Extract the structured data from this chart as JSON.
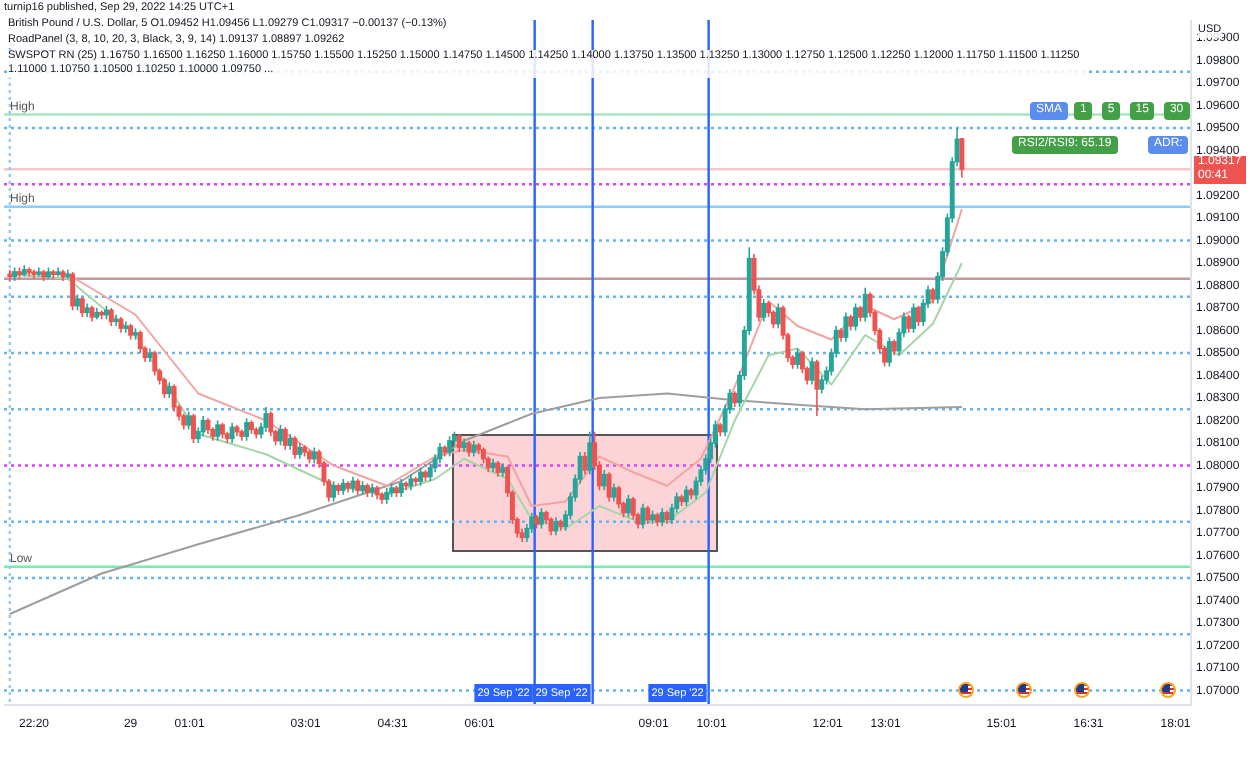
{
  "chart_data": {
    "type": "candlestick",
    "annotations": [
      "turnip16 published, Sep 29, 2022 14:25 UTC+1",
      "British Pound / U.S. Dollar, 5  O1.09452  H1.09456  L1.09279  C1.09317  −0.00137 (−0.13%)",
      "RoadPanel (3, 8, 10, 20, 3, Black, 3, 9, 14)  1.09137  1.08897  1.09262",
      "SWSPOT RN (25)  1.16750  1.16500  1.16250  1.16000  1.15750  1.15500  1.15250  1.15000  1.14750  1.14500  1.14250  1.14000  1.13750  1.13500  1.13250  1.13000  1.12750  1.12500  1.12250  1.12000  1.11750  1.11500  1.11250  1.11000  1.10750  1.10500  1.10250  1.10000  1.09750 ...",
      "USD",
      "SMA",
      "1 5 15 30",
      "RSI2/RSI9: 65.19",
      "ADR:",
      "1.09317",
      "00:41"
    ],
    "x": [
      "2022-09-28T21:55",
      "2022-09-28T22:00",
      "2022-09-28T22:05",
      "2022-09-28T22:10",
      "2022-09-28T22:15",
      "2022-09-28T22:20",
      "2022-09-28T22:25",
      "2022-09-28T22:30",
      "2022-09-28T22:35",
      "2022-09-28T22:40",
      "2022-09-28T22:45",
      "2022-09-28T22:50",
      "2022-09-28T22:55",
      "2022-09-28T23:00",
      "2022-09-28T23:05",
      "2022-09-28T23:10",
      "2022-09-28T23:15",
      "2022-09-28T23:20",
      "2022-09-28T23:25",
      "2022-09-28T23:30",
      "2022-09-28T23:35",
      "2022-09-28T23:40",
      "2022-09-28T23:45",
      "2022-09-28T23:50",
      "2022-09-28T23:55",
      "2022-09-29T00:00",
      "2022-09-29T00:05",
      "2022-09-29T00:10",
      "2022-09-29T00:15",
      "2022-09-29T00:20",
      "2022-09-29T00:25",
      "2022-09-29T00:30",
      "2022-09-29T00:35",
      "2022-09-29T00:40",
      "2022-09-29T00:45",
      "2022-09-29T00:50",
      "2022-09-29T00:55",
      "2022-09-29T01:00",
      "2022-09-29T01:05",
      "2022-09-29T01:10",
      "2022-09-29T01:15",
      "2022-09-29T01:20",
      "2022-09-29T01:25",
      "2022-09-29T01:30",
      "2022-09-29T01:35",
      "2022-09-29T01:40",
      "2022-09-29T01:45",
      "2022-09-29T01:50",
      "2022-09-29T01:55",
      "2022-09-29T02:00",
      "2022-09-29T02:05",
      "2022-09-29T02:10",
      "2022-09-29T02:15",
      "2022-09-29T02:20",
      "2022-09-29T02:25",
      "2022-09-29T02:30",
      "2022-09-29T02:35",
      "2022-09-29T02:40",
      "2022-09-29T02:45",
      "2022-09-29T02:50",
      "2022-09-29T02:55",
      "2022-09-29T03:00",
      "2022-09-29T03:05",
      "2022-09-29T03:10",
      "2022-09-29T03:15",
      "2022-09-29T03:20",
      "2022-09-29T03:25",
      "2022-09-29T03:30",
      "2022-09-29T03:35",
      "2022-09-29T03:40",
      "2022-09-29T03:45",
      "2022-09-29T03:50",
      "2022-09-29T03:55",
      "2022-09-29T04:00",
      "2022-09-29T04:05",
      "2022-09-29T04:10",
      "2022-09-29T04:15",
      "2022-09-29T04:20",
      "2022-09-29T04:25",
      "2022-09-29T04:30",
      "2022-09-29T04:35",
      "2022-09-29T04:40",
      "2022-09-29T04:45",
      "2022-09-29T04:50",
      "2022-09-29T04:55",
      "2022-09-29T05:00",
      "2022-09-29T05:05",
      "2022-09-29T05:10",
      "2022-09-29T05:15",
      "2022-09-29T05:20",
      "2022-09-29T05:25",
      "2022-09-29T05:30",
      "2022-09-29T05:35",
      "2022-09-29T05:40",
      "2022-09-29T05:45",
      "2022-09-29T05:50",
      "2022-09-29T05:55",
      "2022-09-29T06:00",
      "2022-09-29T06:05",
      "2022-09-29T06:10",
      "2022-09-29T06:15",
      "2022-09-29T06:20",
      "2022-09-29T06:25",
      "2022-09-29T06:30",
      "2022-09-29T06:35",
      "2022-09-29T06:40",
      "2022-09-29T06:45",
      "2022-09-29T06:50",
      "2022-09-29T06:55",
      "2022-09-29T07:00",
      "2022-09-29T07:05",
      "2022-09-29T07:10",
      "2022-09-29T07:15",
      "2022-09-29T07:20",
      "2022-09-29T07:25",
      "2022-09-29T07:30",
      "2022-09-29T07:35",
      "2022-09-29T07:40",
      "2022-09-29T07:45",
      "2022-09-29T07:50",
      "2022-09-29T07:55",
      "2022-09-29T08:00",
      "2022-09-29T08:05",
      "2022-09-29T08:10",
      "2022-09-29T08:15",
      "2022-09-29T08:20",
      "2022-09-29T08:25",
      "2022-09-29T08:30",
      "2022-09-29T08:35",
      "2022-09-29T08:40",
      "2022-09-29T08:45",
      "2022-09-29T08:50",
      "2022-09-29T08:55",
      "2022-09-29T09:00",
      "2022-09-29T09:05",
      "2022-09-29T09:10",
      "2022-09-29T09:15",
      "2022-09-29T09:20",
      "2022-09-29T09:25",
      "2022-09-29T09:30",
      "2022-09-29T09:35",
      "2022-09-29T09:40",
      "2022-09-29T09:45",
      "2022-09-29T09:50",
      "2022-09-29T09:55",
      "2022-09-29T10:00",
      "2022-09-29T10:05",
      "2022-09-29T10:10",
      "2022-09-29T10:15",
      "2022-09-29T10:20",
      "2022-09-29T10:25",
      "2022-09-29T10:30",
      "2022-09-29T10:35",
      "2022-09-29T10:40",
      "2022-09-29T10:45",
      "2022-09-29T10:50",
      "2022-09-29T10:55",
      "2022-09-29T11:00",
      "2022-09-29T11:05",
      "2022-09-29T11:10",
      "2022-09-29T11:15",
      "2022-09-29T11:20",
      "2022-09-29T11:25",
      "2022-09-29T11:30",
      "2022-09-29T11:35",
      "2022-09-29T11:40",
      "2022-09-29T11:45",
      "2022-09-29T11:50",
      "2022-09-29T11:55",
      "2022-09-29T12:00",
      "2022-09-29T12:05",
      "2022-09-29T12:10",
      "2022-09-29T12:15",
      "2022-09-29T12:20",
      "2022-09-29T12:25",
      "2022-09-29T12:30",
      "2022-09-29T12:35",
      "2022-09-29T12:40",
      "2022-09-29T12:45",
      "2022-09-29T12:50",
      "2022-09-29T12:55",
      "2022-09-29T13:00",
      "2022-09-29T13:05",
      "2022-09-29T13:10",
      "2022-09-29T13:15",
      "2022-09-29T13:20",
      "2022-09-29T13:25",
      "2022-09-29T13:30",
      "2022-09-29T13:35",
      "2022-09-29T13:40",
      "2022-09-29T13:45",
      "2022-09-29T13:50",
      "2022-09-29T13:55",
      "2022-09-29T14:00",
      "2022-09-29T14:05",
      "2022-09-29T14:10",
      "2022-09-29T14:15",
      "2022-09-29T14:20"
    ],
    "ohlc": [
      [
        1.0885,
        1.0887,
        1.0882,
        1.0884
      ],
      [
        1.0884,
        1.0888,
        1.0882,
        1.0886
      ],
      [
        1.0886,
        1.0888,
        1.0883,
        1.0885
      ],
      [
        1.0885,
        1.0889,
        1.0884,
        1.0887
      ],
      [
        1.0887,
        1.0888,
        1.0884,
        1.0886
      ],
      [
        1.0886,
        1.0887,
        1.0883,
        1.0885
      ],
      [
        1.0885,
        1.0888,
        1.0884,
        1.0886
      ],
      [
        1.0886,
        1.0887,
        1.0882,
        1.0884
      ],
      [
        1.0884,
        1.0888,
        1.0883,
        1.0886
      ],
      [
        1.0886,
        1.0887,
        1.0883,
        1.0885
      ],
      [
        1.0885,
        1.0888,
        1.0884,
        1.0886
      ],
      [
        1.0886,
        1.0887,
        1.0882,
        1.0884
      ],
      [
        1.0884,
        1.0887,
        1.0883,
        1.0885
      ],
      [
        1.0885,
        1.0886,
        1.0869,
        1.0871
      ],
      [
        1.0871,
        1.0876,
        1.0869,
        1.0874
      ],
      [
        1.0874,
        1.0875,
        1.0866,
        1.0868
      ],
      [
        1.0868,
        1.0872,
        1.0866,
        1.087
      ],
      [
        1.087,
        1.0871,
        1.0864,
        1.0866
      ],
      [
        1.0866,
        1.087,
        1.0865,
        1.0868
      ],
      [
        1.0868,
        1.0869,
        1.0865,
        1.0867
      ],
      [
        1.0867,
        1.0871,
        1.0865,
        1.0869
      ],
      [
        1.0869,
        1.087,
        1.0862,
        1.0864
      ],
      [
        1.0864,
        1.0867,
        1.0862,
        1.0865
      ],
      [
        1.0865,
        1.0866,
        1.0859,
        1.0861
      ],
      [
        1.0861,
        1.0864,
        1.0859,
        1.0862
      ],
      [
        1.0862,
        1.0863,
        1.0856,
        1.0858
      ],
      [
        1.0858,
        1.0861,
        1.0856,
        1.0859
      ],
      [
        1.0859,
        1.086,
        1.085,
        1.0852
      ],
      [
        1.0852,
        1.0853,
        1.0846,
        1.0848
      ],
      [
        1.0848,
        1.0852,
        1.0846,
        1.085
      ],
      [
        1.085,
        1.0851,
        1.084,
        1.0842
      ],
      [
        1.0842,
        1.0843,
        1.0836,
        1.0838
      ],
      [
        1.0838,
        1.0839,
        1.083,
        1.0832
      ],
      [
        1.0832,
        1.0837,
        1.083,
        1.0835
      ],
      [
        1.0835,
        1.0836,
        1.0824,
        1.0826
      ],
      [
        1.0826,
        1.0827,
        1.082,
        1.0822
      ],
      [
        1.0822,
        1.0823,
        1.0816,
        1.0818
      ],
      [
        1.0818,
        1.0824,
        1.0816,
        1.0822
      ],
      [
        1.0822,
        1.0823,
        1.081,
        1.0812
      ],
      [
        1.0812,
        1.0817,
        1.081,
        1.0815
      ],
      [
        1.0815,
        1.0822,
        1.0813,
        1.082
      ],
      [
        1.082,
        1.0821,
        1.0814,
        1.0816
      ],
      [
        1.0816,
        1.0817,
        1.0811,
        1.0813
      ],
      [
        1.0813,
        1.082,
        1.0811,
        1.0818
      ],
      [
        1.0818,
        1.0819,
        1.0812,
        1.0814
      ],
      [
        1.0814,
        1.0815,
        1.081,
        1.0812
      ],
      [
        1.0812,
        1.0819,
        1.081,
        1.0817
      ],
      [
        1.0817,
        1.0818,
        1.0813,
        1.0815
      ],
      [
        1.0815,
        1.0816,
        1.0811,
        1.0813
      ],
      [
        1.0813,
        1.0821,
        1.0811,
        1.0819
      ],
      [
        1.0819,
        1.082,
        1.0814,
        1.0816
      ],
      [
        1.0816,
        1.0817,
        1.0812,
        1.0814
      ],
      [
        1.0814,
        1.0819,
        1.0812,
        1.0817
      ],
      [
        1.0817,
        1.0826,
        1.0815,
        1.0823
      ],
      [
        1.0823,
        1.0824,
        1.0813,
        1.0815
      ],
      [
        1.0815,
        1.0816,
        1.0809,
        1.0811
      ],
      [
        1.0811,
        1.0818,
        1.0809,
        1.0816
      ],
      [
        1.0816,
        1.0817,
        1.0807,
        1.0809
      ],
      [
        1.0809,
        1.0814,
        1.0807,
        1.0812
      ],
      [
        1.0812,
        1.0813,
        1.0803,
        1.0805
      ],
      [
        1.0805,
        1.081,
        1.0803,
        1.0808
      ],
      [
        1.0808,
        1.0809,
        1.0804,
        1.0806
      ],
      [
        1.0806,
        1.0807,
        1.0801,
        1.0803
      ],
      [
        1.0803,
        1.0808,
        1.0801,
        1.0806
      ],
      [
        1.0806,
        1.0807,
        1.0799,
        1.0801
      ],
      [
        1.0801,
        1.0802,
        1.0791,
        1.0793
      ],
      [
        1.0793,
        1.0794,
        1.0784,
        1.0786
      ],
      [
        1.0786,
        1.0793,
        1.0784,
        1.0791
      ],
      [
        1.0791,
        1.0792,
        1.0787,
        1.0789
      ],
      [
        1.0789,
        1.0794,
        1.0787,
        1.0792
      ],
      [
        1.0792,
        1.0793,
        1.0788,
        1.079
      ],
      [
        1.079,
        1.0795,
        1.0788,
        1.0793
      ],
      [
        1.0793,
        1.0794,
        1.0787,
        1.0789
      ],
      [
        1.0789,
        1.0793,
        1.0787,
        1.0791
      ],
      [
        1.0791,
        1.0792,
        1.0786,
        1.0788
      ],
      [
        1.0788,
        1.0792,
        1.0786,
        1.079
      ],
      [
        1.079,
        1.0791,
        1.0785,
        1.0787
      ],
      [
        1.0787,
        1.0788,
        1.0783,
        1.0785
      ],
      [
        1.0785,
        1.079,
        1.0783,
        1.0788
      ],
      [
        1.0788,
        1.0792,
        1.0786,
        1.079
      ],
      [
        1.079,
        1.0791,
        1.0786,
        1.0788
      ],
      [
        1.0788,
        1.0794,
        1.0786,
        1.0792
      ],
      [
        1.0792,
        1.0793,
        1.0789,
        1.0791
      ],
      [
        1.0791,
        1.0796,
        1.0789,
        1.0794
      ],
      [
        1.0794,
        1.0795,
        1.0791,
        1.0793
      ],
      [
        1.0793,
        1.0799,
        1.0791,
        1.0797
      ],
      [
        1.0797,
        1.0798,
        1.0793,
        1.0795
      ],
      [
        1.0795,
        1.0801,
        1.0793,
        1.0799
      ],
      [
        1.0799,
        1.0805,
        1.0797,
        1.0803
      ],
      [
        1.0803,
        1.081,
        1.0801,
        1.0808
      ],
      [
        1.0808,
        1.0809,
        1.0804,
        1.0806
      ],
      [
        1.0806,
        1.0813,
        1.0804,
        1.0811
      ],
      [
        1.0811,
        1.0815,
        1.0809,
        1.0813
      ],
      [
        1.0813,
        1.0814,
        1.0806,
        1.0808
      ],
      [
        1.0808,
        1.0812,
        1.0806,
        1.081
      ],
      [
        1.081,
        1.0811,
        1.0804,
        1.0806
      ],
      [
        1.0806,
        1.0811,
        1.0804,
        1.0809
      ],
      [
        1.0809,
        1.081,
        1.0805,
        1.0807
      ],
      [
        1.0807,
        1.0808,
        1.0801,
        1.0803
      ],
      [
        1.0803,
        1.0804,
        1.0797,
        1.0799
      ],
      [
        1.0799,
        1.0803,
        1.0797,
        1.0801
      ],
      [
        1.0801,
        1.0802,
        1.0795,
        1.0797
      ],
      [
        1.0797,
        1.0801,
        1.0795,
        1.0799
      ],
      [
        1.0799,
        1.08,
        1.0786,
        1.0788
      ],
      [
        1.0788,
        1.0789,
        1.0774,
        1.0776
      ],
      [
        1.0776,
        1.0777,
        1.0768,
        1.077
      ],
      [
        1.077,
        1.0772,
        1.0766,
        1.0768
      ],
      [
        1.0768,
        1.0774,
        1.0766,
        1.0772
      ],
      [
        1.0772,
        1.0779,
        1.077,
        1.0777
      ],
      [
        1.0777,
        1.0778,
        1.0772,
        1.0774
      ],
      [
        1.0774,
        1.0781,
        1.0772,
        1.0779
      ],
      [
        1.0779,
        1.078,
        1.0774,
        1.0776
      ],
      [
        1.0776,
        1.0777,
        1.0769,
        1.0771
      ],
      [
        1.0771,
        1.0777,
        1.0769,
        1.0775
      ],
      [
        1.0775,
        1.0776,
        1.0771,
        1.0773
      ],
      [
        1.0773,
        1.078,
        1.0771,
        1.0778
      ],
      [
        1.0778,
        1.0788,
        1.0776,
        1.0786
      ],
      [
        1.0786,
        1.0796,
        1.0784,
        1.0794
      ],
      [
        1.0794,
        1.0806,
        1.0792,
        1.0804
      ],
      [
        1.0804,
        1.0806,
        1.0796,
        1.0798
      ],
      [
        1.0798,
        1.0815,
        1.0796,
        1.081
      ],
      [
        1.081,
        1.0815,
        1.0798,
        1.08
      ],
      [
        1.08,
        1.0802,
        1.0789,
        1.0791
      ],
      [
        1.0791,
        1.0798,
        1.0789,
        1.0796
      ],
      [
        1.0796,
        1.0797,
        1.0784,
        1.0786
      ],
      [
        1.0786,
        1.0792,
        1.0784,
        1.079
      ],
      [
        1.079,
        1.0791,
        1.0781,
        1.0783
      ],
      [
        1.0783,
        1.0784,
        1.0777,
        1.0779
      ],
      [
        1.0779,
        1.0787,
        1.0777,
        1.0785
      ],
      [
        1.0785,
        1.0786,
        1.0776,
        1.0778
      ],
      [
        1.0778,
        1.0779,
        1.0772,
        1.0774
      ],
      [
        1.0774,
        1.0783,
        1.0772,
        1.0781
      ],
      [
        1.0781,
        1.0782,
        1.0774,
        1.0776
      ],
      [
        1.0776,
        1.078,
        1.0774,
        1.0778
      ],
      [
        1.0778,
        1.0779,
        1.0773,
        1.0775
      ],
      [
        1.0775,
        1.0781,
        1.0773,
        1.0779
      ],
      [
        1.0779,
        1.078,
        1.0774,
        1.0776
      ],
      [
        1.0776,
        1.0783,
        1.0774,
        1.0781
      ],
      [
        1.0781,
        1.0788,
        1.0779,
        1.0786
      ],
      [
        1.0786,
        1.0787,
        1.0782,
        1.0784
      ],
      [
        1.0784,
        1.0791,
        1.0782,
        1.0789
      ],
      [
        1.0789,
        1.079,
        1.0785,
        1.0787
      ],
      [
        1.0787,
        1.0795,
        1.0785,
        1.0793
      ],
      [
        1.0793,
        1.08,
        1.0791,
        1.0798
      ],
      [
        1.0798,
        1.0805,
        1.0796,
        1.0803
      ],
      [
        1.0803,
        1.0812,
        1.0801,
        1.081
      ],
      [
        1.081,
        1.082,
        1.0808,
        1.0818
      ],
      [
        1.0818,
        1.0819,
        1.0813,
        1.0815
      ],
      [
        1.0815,
        1.0827,
        1.0813,
        1.0825
      ],
      [
        1.0825,
        1.0834,
        1.0823,
        1.0832
      ],
      [
        1.0832,
        1.0833,
        1.0826,
        1.0828
      ],
      [
        1.0828,
        1.0842,
        1.0826,
        1.084
      ],
      [
        1.084,
        1.0862,
        1.0838,
        1.086
      ],
      [
        1.086,
        1.0897,
        1.0858,
        1.0892
      ],
      [
        1.0892,
        1.0894,
        1.0876,
        1.0878
      ],
      [
        1.0878,
        1.088,
        1.0864,
        1.0866
      ],
      [
        1.0866,
        1.0874,
        1.0864,
        1.0872
      ],
      [
        1.0872,
        1.0873,
        1.0866,
        1.0868
      ],
      [
        1.0868,
        1.0869,
        1.0861,
        1.0863
      ],
      [
        1.0863,
        1.0872,
        1.0861,
        1.087
      ],
      [
        1.087,
        1.0871,
        1.0856,
        1.0858
      ],
      [
        1.0858,
        1.0859,
        1.0846,
        1.0848
      ],
      [
        1.0848,
        1.0849,
        1.0843,
        1.0845
      ],
      [
        1.0845,
        1.0852,
        1.0843,
        1.085
      ],
      [
        1.085,
        1.0851,
        1.0841,
        1.0843
      ],
      [
        1.0843,
        1.0844,
        1.0836,
        1.0838
      ],
      [
        1.0838,
        1.0848,
        1.0836,
        1.0846
      ],
      [
        1.0846,
        1.0847,
        1.0822,
        1.0834
      ],
      [
        1.0834,
        1.084,
        1.0832,
        1.0838
      ],
      [
        1.0838,
        1.0844,
        1.0836,
        1.0842
      ],
      [
        1.0842,
        1.0852,
        1.084,
        1.085
      ],
      [
        1.085,
        1.0862,
        1.0848,
        1.086
      ],
      [
        1.086,
        1.0861,
        1.0855,
        1.0857
      ],
      [
        1.0857,
        1.0868,
        1.0855,
        1.0866
      ],
      [
        1.0866,
        1.0867,
        1.086,
        1.0862
      ],
      [
        1.0862,
        1.0872,
        1.086,
        1.087
      ],
      [
        1.087,
        1.0871,
        1.0864,
        1.0866
      ],
      [
        1.0866,
        1.0879,
        1.0864,
        1.0876
      ],
      [
        1.0876,
        1.0877,
        1.0866,
        1.0868
      ],
      [
        1.0868,
        1.0869,
        1.0858,
        1.086
      ],
      [
        1.086,
        1.0861,
        1.085,
        1.0852
      ],
      [
        1.0852,
        1.0853,
        1.0844,
        1.0846
      ],
      [
        1.0846,
        1.0857,
        1.0844,
        1.0855
      ],
      [
        1.0855,
        1.0856,
        1.0849,
        1.0851
      ],
      [
        1.0851,
        1.0861,
        1.0849,
        1.0859
      ],
      [
        1.0859,
        1.0868,
        1.0857,
        1.0866
      ],
      [
        1.0866,
        1.0867,
        1.0859,
        1.0861
      ],
      [
        1.0861,
        1.0872,
        1.0859,
        1.087
      ],
      [
        1.087,
        1.0871,
        1.0862,
        1.0864
      ],
      [
        1.0864,
        1.0874,
        1.0862,
        1.0872
      ],
      [
        1.0872,
        1.088,
        1.087,
        1.0878
      ],
      [
        1.0878,
        1.0879,
        1.0872,
        1.0874
      ],
      [
        1.0874,
        1.0886,
        1.0872,
        1.0884
      ],
      [
        1.0884,
        1.0897,
        1.0882,
        1.0895
      ],
      [
        1.0895,
        1.0912,
        1.0893,
        1.091
      ],
      [
        1.091,
        1.0937,
        1.0908,
        1.0935
      ],
      [
        1.0935,
        1.095,
        1.0933,
        1.0945
      ],
      [
        1.09452,
        1.09456,
        1.09279,
        1.09317
      ]
    ],
    "series": [
      {
        "type": "line",
        "color": "#f4a3a3",
        "x": [
          "2022-09-28T21:55",
          "2022-09-28T22:55",
          "2022-09-29T00:05",
          "2022-09-29T01:10",
          "2022-09-29T02:20",
          "2022-09-29T03:30",
          "2022-09-29T04:25",
          "2022-09-29T05:15",
          "2022-09-29T05:45",
          "2022-09-29T06:30",
          "2022-09-29T06:55",
          "2022-09-29T07:30",
          "2022-09-29T08:05",
          "2022-09-29T08:40",
          "2022-09-29T09:15",
          "2022-09-29T09:50",
          "2022-09-29T10:25",
          "2022-09-29T11:00",
          "2022-09-29T11:30",
          "2022-09-29T12:05",
          "2022-09-29T12:40",
          "2022-09-29T13:10",
          "2022-09-29T13:50",
          "2022-09-29T14:20"
        ],
        "values": [
          1.0886,
          1.0885,
          1.0867,
          1.0832,
          1.082,
          1.08,
          1.0791,
          1.0804,
          1.0807,
          1.0804,
          1.0782,
          1.0784,
          1.0804,
          1.0797,
          1.0791,
          1.0803,
          1.0835,
          1.0873,
          1.0862,
          1.0856,
          1.0871,
          1.0865,
          1.0873,
          1.0914
        ]
      },
      {
        "type": "line",
        "color": "#a5d6a7",
        "x": [
          "2022-09-28T21:55",
          "2022-09-28T22:55",
          "2022-09-29T00:05",
          "2022-09-29T01:10",
          "2022-09-29T02:20",
          "2022-09-29T03:30",
          "2022-09-29T04:25",
          "2022-09-29T05:15",
          "2022-09-29T05:45",
          "2022-09-29T06:30",
          "2022-09-29T06:55",
          "2022-09-29T07:30",
          "2022-09-29T08:05",
          "2022-09-29T08:40",
          "2022-09-29T09:15",
          "2022-09-29T09:55",
          "2022-09-29T10:25",
          "2022-09-29T11:00",
          "2022-09-29T11:30",
          "2022-09-29T12:05",
          "2022-09-29T12:40",
          "2022-09-29T13:15",
          "2022-09-29T13:50",
          "2022-09-29T14:20"
        ],
        "values": [
          1.0885,
          1.0883,
          1.0858,
          1.0814,
          1.0805,
          1.0791,
          1.0787,
          1.0794,
          1.0803,
          1.0794,
          1.0776,
          1.0772,
          1.0782,
          1.0776,
          1.0775,
          1.0788,
          1.082,
          1.0849,
          1.0852,
          1.0836,
          1.0858,
          1.0849,
          1.0863,
          1.089
        ]
      },
      {
        "type": "line",
        "color": "#9e9e9e",
        "x": [
          "2022-09-28T21:55",
          "2022-09-28T23:30",
          "2022-09-29T01:10",
          "2022-09-29T02:55",
          "2022-09-29T04:40",
          "2022-09-29T05:45",
          "2022-09-29T06:55",
          "2022-09-29T08:05",
          "2022-09-29T09:15",
          "2022-09-29T10:25",
          "2022-09-29T11:30",
          "2022-09-29T12:40",
          "2022-09-29T14:20"
        ],
        "values": [
          1.0734,
          1.0752,
          1.0765,
          1.0778,
          1.0793,
          1.0811,
          1.0823,
          1.083,
          1.0832,
          1.0829,
          1.0827,
          1.0825,
          1.0826
        ]
      }
    ],
    "xlim": [
      "2022-09-28T21:49",
      "2022-09-29T18:16"
    ],
    "xticks": [
      {
        "value": "2022-09-28T22:20",
        "label": "22:20"
      },
      {
        "value": "2022-09-29T00:00",
        "label": "29"
      },
      {
        "value": "2022-09-29T01:01",
        "label": "01:01"
      },
      {
        "value": "2022-09-29T03:01",
        "label": "03:01"
      },
      {
        "value": "2022-09-29T04:31",
        "label": "04:31"
      },
      {
        "value": "2022-09-29T06:01",
        "label": "06:01"
      },
      {
        "value": "2022-09-29T09:01",
        "label": "09:01"
      },
      {
        "value": "2022-09-29T10:01",
        "label": "10:01"
      },
      {
        "value": "2022-09-29T12:01",
        "label": "12:01"
      },
      {
        "value": "2022-09-29T13:01",
        "label": "13:01"
      },
      {
        "value": "2022-09-29T15:01",
        "label": "15:01"
      },
      {
        "value": "2022-09-29T16:31",
        "label": "16:31"
      },
      {
        "value": "2022-09-29T18:01",
        "label": "18:01"
      }
    ],
    "ylim": [
      1.0694,
      1.0998
    ],
    "yticks": [
      {
        "value": 1.07,
        "label": "1.07000"
      },
      {
        "value": 1.071,
        "label": "1.07100"
      },
      {
        "value": 1.072,
        "label": "1.07200"
      },
      {
        "value": 1.073,
        "label": "1.07300"
      },
      {
        "value": 1.074,
        "label": "1.07400"
      },
      {
        "value": 1.075,
        "label": "1.07500"
      },
      {
        "value": 1.076,
        "label": "1.07600"
      },
      {
        "value": 1.077,
        "label": "1.07700"
      },
      {
        "value": 1.078,
        "label": "1.07800"
      },
      {
        "value": 1.079,
        "label": "1.07900"
      },
      {
        "value": 1.08,
        "label": "1.08000"
      },
      {
        "value": 1.081,
        "label": "1.08100"
      },
      {
        "value": 1.082,
        "label": "1.08200"
      },
      {
        "value": 1.083,
        "label": "1.08300"
      },
      {
        "value": 1.084,
        "label": "1.08400"
      },
      {
        "value": 1.085,
        "label": "1.08500"
      },
      {
        "value": 1.086,
        "label": "1.08600"
      },
      {
        "value": 1.087,
        "label": "1.08700"
      },
      {
        "value": 1.088,
        "label": "1.08800"
      },
      {
        "value": 1.089,
        "label": "1.08900"
      },
      {
        "value": 1.09,
        "label": "1.09000"
      },
      {
        "value": 1.091,
        "label": "1.09100"
      },
      {
        "value": 1.092,
        "label": "1.09200"
      },
      {
        "value": 1.094,
        "label": "1.09400"
      },
      {
        "value": 1.095,
        "label": "1.09500"
      },
      {
        "value": 1.096,
        "label": "1.09600"
      },
      {
        "value": 1.097,
        "label": "1.09700"
      },
      {
        "value": 1.098,
        "label": "1.09800"
      },
      {
        "value": 1.099,
        "label": "1.09900"
      }
    ],
    "ref_lines": [
      {
        "axis": "y",
        "value": 1.0975,
        "color": "#64b5f6",
        "line_style": "dotted"
      },
      {
        "axis": "y",
        "value": 1.095,
        "color": "#64b5f6",
        "line_style": "dotted"
      },
      {
        "axis": "y",
        "value": 1.09,
        "color": "#64b5f6",
        "line_style": "dotted"
      },
      {
        "axis": "y",
        "value": 1.0875,
        "color": "#64b5f6",
        "line_style": "dotted"
      },
      {
        "axis": "y",
        "value": 1.085,
        "color": "#64b5f6",
        "line_style": "dotted"
      },
      {
        "axis": "y",
        "value": 1.0825,
        "color": "#64b5f6",
        "line_style": "dotted"
      },
      {
        "axis": "y",
        "value": 1.0775,
        "color": "#64b5f6",
        "line_style": "dotted"
      },
      {
        "axis": "y",
        "value": 1.075,
        "color": "#64b5f6",
        "line_style": "dotted"
      },
      {
        "axis": "y",
        "value": 1.0725,
        "color": "#64b5f6",
        "line_style": "dotted"
      },
      {
        "axis": "y",
        "value": 1.07,
        "color": "#64b5f6",
        "line_style": "dotted"
      },
      {
        "axis": "y",
        "value": 1.0925,
        "color": "#e040fb",
        "line_style": "dotted"
      },
      {
        "axis": "y",
        "value": 1.08,
        "color": "#e040fb",
        "line_style": "dotted"
      },
      {
        "axis": "y",
        "value": 1.0956,
        "label": "High",
        "color": "#a5e6c0",
        "line_style": "solid"
      },
      {
        "axis": "y",
        "value": 1.0915,
        "label": "High",
        "color": "#90caf9",
        "line_style": "solid"
      },
      {
        "axis": "y",
        "value": 1.0755,
        "label": "Low",
        "color": "#7ee8b0",
        "line_style": "solid"
      },
      {
        "axis": "y",
        "value": 1.0883,
        "color": "#c0989e",
        "line_style": "solid"
      },
      {
        "axis": "y",
        "value": 1.09317,
        "color": "#f7c6c6",
        "line_style": "solid"
      },
      {
        "axis": "x",
        "value": "2022-09-28T21:55",
        "color": "#90caf9",
        "line_style": "dotted"
      },
      {
        "axis": "x",
        "value": "2022-09-29T06:58",
        "label": "29 Sep '22",
        "color": "#2962ff",
        "line_style": "solid"
      },
      {
        "axis": "x",
        "value": "2022-09-29T07:58",
        "label": "29 Sep '22",
        "color": "#2962ff",
        "line_style": "solid"
      },
      {
        "axis": "x",
        "value": "2022-09-29T09:58",
        "label": "29 Sep '22",
        "color": "#2962ff",
        "line_style": "solid"
      }
    ],
    "legend": false
  }
}
